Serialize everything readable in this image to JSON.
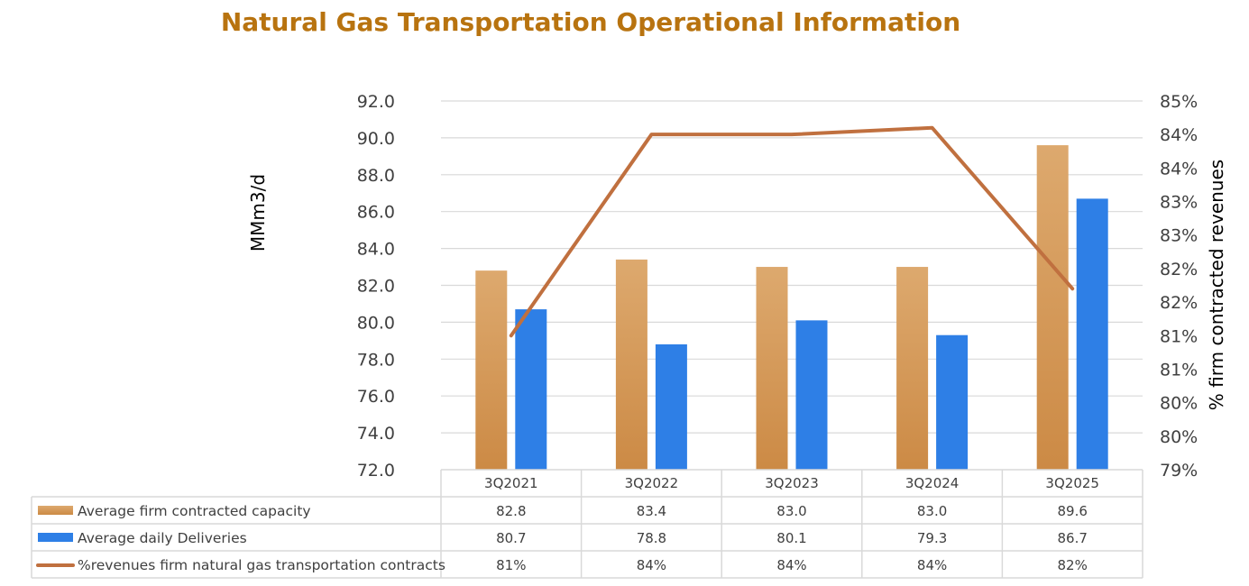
{
  "chart_data": {
    "type": "bar",
    "title": "Natural Gas Transportation Operational Information",
    "categories": [
      "3Q2021",
      "3Q2022",
      "3Q2023",
      "3Q2024",
      "3Q2025"
    ],
    "series": [
      {
        "name": "Average firm contracted capacity",
        "type": "bar",
        "axis": "left",
        "color": "#D9A066",
        "values": [
          82.8,
          83.4,
          83.0,
          83.0,
          89.6
        ],
        "labels": [
          "82.8",
          "83.4",
          "83.0",
          "83.0",
          "89.6"
        ]
      },
      {
        "name": "Average daily Deliveries",
        "type": "bar",
        "axis": "left",
        "color": "#2E7FE6",
        "values": [
          80.7,
          78.8,
          80.1,
          79.3,
          86.7
        ],
        "labels": [
          "80.7",
          "78.8",
          "80.1",
          "79.3",
          "86.7"
        ]
      },
      {
        "name": "%revenues firm natural gas transportation contracts",
        "type": "line",
        "axis": "right",
        "color": "#C0703F",
        "values": [
          81.0,
          84.0,
          84.0,
          84.1,
          81.7
        ],
        "labels": [
          "81%",
          "84%",
          "84%",
          "84%",
          "82%"
        ]
      }
    ],
    "ylabel": "MMm3/d",
    "ylim": [
      72,
      92
    ],
    "yticks": [
      "72.0",
      "74.0",
      "76.0",
      "78.0",
      "80.0",
      "82.0",
      "84.0",
      "86.0",
      "88.0",
      "90.0",
      "92.0"
    ],
    "y2label": "% firm contracted revenues",
    "y2lim": [
      79,
      84.5
    ],
    "y2ticks": [
      "79%",
      "80%",
      "80%",
      "81%",
      "81%",
      "82%",
      "82%",
      "83%",
      "83%",
      "84%",
      "84%",
      "85%"
    ],
    "grid": true,
    "legend": "data-table"
  }
}
